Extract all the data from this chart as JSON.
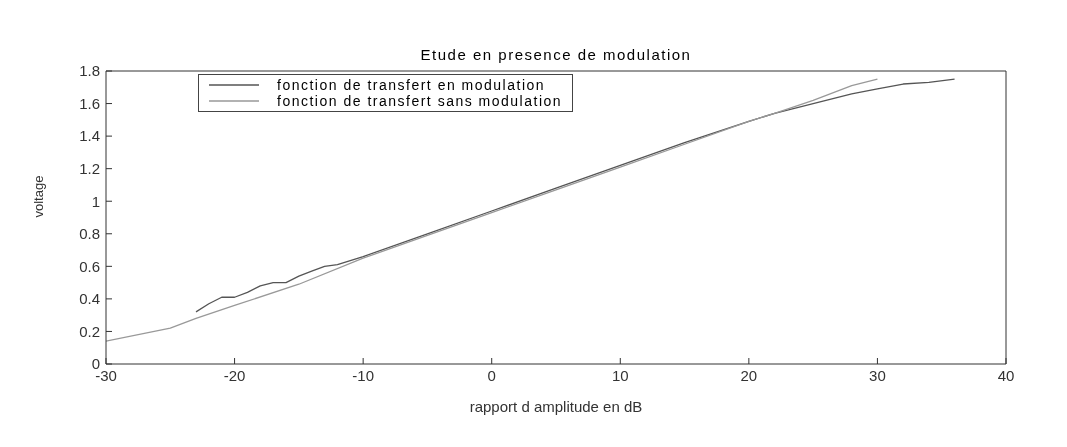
{
  "chart_data": {
    "type": "line",
    "title": "Etude en presence de modulation",
    "xlabel": "rapport d amplitude en dB",
    "ylabel": "voltage",
    "xlim": [
      -30,
      40
    ],
    "xticks": [
      -30,
      -20,
      -10,
      0,
      10,
      20,
      30,
      40
    ],
    "ylim": [
      0,
      1.8
    ],
    "yticks": [
      0,
      0.2,
      0.4,
      0.6,
      0.8,
      1,
      1.2,
      1.4,
      1.6,
      1.8
    ],
    "grid": false,
    "legend": "top",
    "line_style": "solid",
    "marker": "none",
    "series": [
      {
        "name": "fonction de transfert en modulation",
        "color": "#555555",
        "x": [
          -23,
          -22,
          -21,
          -20,
          -19,
          -18,
          -17,
          -16,
          -15,
          -14,
          -13,
          -12,
          -10,
          -5,
          0,
          5,
          10,
          15,
          20,
          22,
          25,
          28,
          30,
          32,
          34,
          36
        ],
        "values": [
          0.32,
          0.37,
          0.41,
          0.41,
          0.44,
          0.48,
          0.5,
          0.5,
          0.54,
          0.57,
          0.6,
          0.61,
          0.66,
          0.8,
          0.94,
          1.08,
          1.22,
          1.36,
          1.49,
          1.54,
          1.6,
          1.66,
          1.69,
          1.72,
          1.73,
          1.75
        ]
      },
      {
        "name": "fonction de transfert sans modulation",
        "color": "#999999",
        "x": [
          -30,
          -25,
          -23,
          -20,
          -15,
          -10,
          -5,
          0,
          5,
          10,
          15,
          20,
          22,
          25,
          28,
          30
        ],
        "values": [
          0.14,
          0.22,
          0.28,
          0.36,
          0.49,
          0.65,
          0.79,
          0.93,
          1.07,
          1.21,
          1.35,
          1.49,
          1.54,
          1.62,
          1.71,
          1.75
        ]
      }
    ]
  }
}
